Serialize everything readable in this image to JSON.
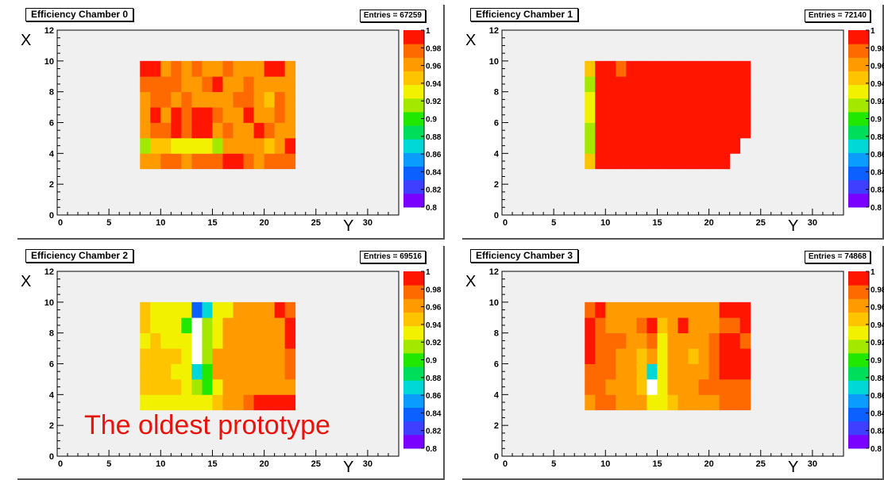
{
  "colors": {
    "frame_bg": "#f0f0f0",
    "annotation": "#e8140c"
  },
  "annotation": "The oldest prototype",
  "chart_data": [
    {
      "type": "heatmap",
      "title": "Efficiency Chamber 0",
      "entries": "Entries = 67259",
      "xlabel": "Y",
      "ylabel": "X",
      "xlim": [
        0,
        33
      ],
      "ylim": [
        0,
        12
      ],
      "x_ticks": [
        "0",
        "5",
        "10",
        "15",
        "20",
        "25",
        "30"
      ],
      "y_ticks": [
        "0",
        "2",
        "4",
        "6",
        "8",
        "10",
        "12"
      ],
      "zlim": [
        0.8,
        1.0
      ],
      "z_ticks": [
        "1",
        "0.98",
        "0.96",
        "0.94",
        "0.92",
        "0.9",
        "0.88",
        "0.86",
        "0.84",
        "0.82",
        "0.8"
      ],
      "cell_x_start": 8,
      "cell_y_start": 3,
      "cells": [
        [
          0.965,
          0.965,
          0.975,
          0.975,
          0.965,
          0.975,
          0.975,
          0.975,
          0.985,
          0.985,
          0.975,
          0.965,
          0.975,
          0.975,
          0.975
        ],
        [
          0.91,
          0.94,
          0.94,
          0.935,
          0.925,
          0.925,
          0.925,
          0.91,
          0.965,
          0.965,
          0.955,
          0.965,
          0.945,
          0.955,
          0.985
        ],
        [
          0.965,
          0.975,
          0.975,
          0.985,
          0.975,
          0.985,
          0.985,
          0.965,
          0.975,
          0.965,
          0.965,
          0.985,
          0.975,
          0.965,
          0.965
        ],
        [
          0.965,
          0.985,
          0.965,
          0.99,
          0.975,
          0.985,
          0.985,
          0.975,
          0.965,
          0.965,
          0.985,
          0.965,
          0.965,
          0.975,
          0.955
        ],
        [
          0.965,
          0.975,
          0.975,
          0.965,
          0.975,
          0.965,
          0.965,
          0.965,
          0.965,
          0.975,
          0.975,
          0.965,
          0.945,
          0.975,
          0.965
        ],
        [
          0.975,
          0.975,
          0.975,
          0.975,
          0.965,
          0.965,
          0.975,
          0.985,
          0.965,
          0.965,
          0.975,
          0.965,
          0.955,
          0.965,
          0.955
        ],
        [
          0.985,
          0.985,
          0.965,
          0.975,
          0.965,
          0.975,
          0.965,
          0.965,
          0.975,
          0.965,
          0.965,
          0.965,
          0.985,
          0.985,
          0.965
        ]
      ]
    },
    {
      "type": "heatmap",
      "title": "Efficiency Chamber 1",
      "entries": "Entries = 72140",
      "xlabel": "Y",
      "ylabel": "X",
      "xlim": [
        0,
        33
      ],
      "ylim": [
        0,
        12
      ],
      "x_ticks": [
        "0",
        "5",
        "10",
        "15",
        "20",
        "25",
        "30"
      ],
      "y_ticks": [
        "0",
        "2",
        "4",
        "6",
        "8",
        "10",
        "12"
      ],
      "zlim": [
        0.8,
        1.0
      ],
      "z_ticks": [
        "1",
        "0.98",
        "0.96",
        "0.94",
        "0.92",
        "0.9",
        "0.88",
        "0.86",
        "0.84",
        "0.82",
        "0.8"
      ],
      "cell_x_start": 8,
      "cell_y_start": 3,
      "cells": [
        [
          0.94,
          0.99,
          0.99,
          0.99,
          0.99,
          0.99,
          0.99,
          0.99,
          0.99,
          0.99,
          0.99,
          0.99,
          0.99,
          0.99,
          null,
          null
        ],
        [
          0.92,
          0.99,
          0.99,
          0.99,
          0.99,
          0.99,
          0.99,
          0.99,
          0.99,
          0.99,
          0.99,
          0.99,
          0.99,
          0.99,
          0.99,
          null
        ],
        [
          0.92,
          0.99,
          0.99,
          0.99,
          0.99,
          0.99,
          0.99,
          0.99,
          0.99,
          0.99,
          0.99,
          0.99,
          0.99,
          0.99,
          0.99,
          0.99
        ],
        [
          0.93,
          0.99,
          0.99,
          0.99,
          0.99,
          0.99,
          0.99,
          0.99,
          0.99,
          0.99,
          0.99,
          0.99,
          0.99,
          0.99,
          0.99,
          0.99
        ],
        [
          0.93,
          0.99,
          0.99,
          0.99,
          0.99,
          0.99,
          0.99,
          0.99,
          0.99,
          0.99,
          0.99,
          0.99,
          0.99,
          0.99,
          0.99,
          0.99
        ],
        [
          0.92,
          0.99,
          0.99,
          0.99,
          0.99,
          0.99,
          0.99,
          0.99,
          0.99,
          0.99,
          0.99,
          0.99,
          0.99,
          0.99,
          0.99,
          0.99
        ],
        [
          0.94,
          0.99,
          0.99,
          0.98,
          0.99,
          0.99,
          0.99,
          0.99,
          0.99,
          0.99,
          0.99,
          0.99,
          0.99,
          0.99,
          0.99,
          0.99
        ]
      ]
    },
    {
      "type": "heatmap",
      "title": "Efficiency Chamber  2",
      "entries": "Entries = 69516",
      "xlabel": "Y",
      "ylabel": "X",
      "xlim": [
        0,
        33
      ],
      "ylim": [
        0,
        12
      ],
      "x_ticks": [
        "0",
        "5",
        "10",
        "15",
        "20",
        "25",
        "30"
      ],
      "y_ticks": [
        "0",
        "2",
        "4",
        "6",
        "8",
        "10",
        "12"
      ],
      "zlim": [
        0.8,
        1.0
      ],
      "z_ticks": [
        "1",
        "0.98",
        "0.96",
        "0.94",
        "0.92",
        "0.9",
        "0.88",
        "0.86",
        "0.84",
        "0.82",
        "0.8"
      ],
      "cell_x_start": 8,
      "cell_y_start": 3,
      "cells": [
        [
          0.925,
          0.925,
          0.935,
          0.935,
          0.925,
          0.935,
          0.935,
          0.94,
          0.955,
          0.965,
          0.975,
          0.985,
          0.985,
          0.985,
          0.985
        ],
        [
          0.945,
          0.945,
          0.945,
          0.945,
          0.935,
          0.92,
          0.905,
          0.935,
          0.955,
          0.955,
          0.955,
          0.955,
          0.955,
          0.965,
          0.965
        ],
        [
          0.945,
          0.945,
          0.945,
          0.935,
          0.935,
          0.87,
          0.905,
          0.955,
          0.955,
          0.955,
          0.965,
          0.955,
          0.955,
          0.955,
          0.975
        ],
        [
          0.945,
          0.945,
          0.945,
          0.945,
          0.935,
          1.0,
          0.92,
          0.955,
          0.955,
          0.955,
          0.955,
          0.965,
          0.965,
          0.955,
          0.975
        ],
        [
          0.935,
          0.945,
          0.935,
          0.935,
          0.925,
          1.0,
          0.92,
          0.935,
          0.955,
          0.955,
          0.955,
          0.955,
          0.955,
          0.955,
          0.985
        ],
        [
          0.945,
          0.935,
          0.935,
          0.925,
          0.905,
          1.0,
          0.92,
          0.935,
          0.955,
          0.965,
          0.955,
          0.955,
          0.955,
          0.965,
          0.985
        ],
        [
          0.945,
          0.935,
          0.925,
          0.925,
          0.925,
          0.845,
          0.875,
          0.925,
          0.935,
          0.955,
          0.955,
          0.965,
          0.965,
          0.985,
          0.975
        ]
      ]
    },
    {
      "type": "heatmap",
      "title": "Efficiency Chamber  3",
      "entries": "Entries = 74868",
      "xlabel": "Y",
      "ylabel": "X",
      "xlim": [
        0,
        33
      ],
      "ylim": [
        0,
        12
      ],
      "x_ticks": [
        "0",
        "5",
        "10",
        "15",
        "20",
        "25",
        "30"
      ],
      "y_ticks": [
        "0",
        "2",
        "4",
        "6",
        "8",
        "10",
        "12"
      ],
      "zlim": [
        0.8,
        1.0
      ],
      "z_ticks": [
        "1",
        "0.98",
        "0.96",
        "0.94",
        "0.92",
        "0.9",
        "0.88",
        "0.86",
        "0.84",
        "0.82",
        "0.8"
      ],
      "cell_x_start": 8,
      "cell_y_start": 3,
      "cells": [
        [
          0.965,
          0.975,
          0.975,
          0.965,
          0.955,
          0.955,
          0.935,
          0.925,
          0.945,
          0.955,
          0.965,
          0.965,
          0.965,
          0.975,
          0.975,
          0.975
        ],
        [
          0.975,
          0.975,
          0.965,
          0.965,
          0.965,
          0.945,
          1.0,
          0.935,
          0.955,
          0.965,
          0.965,
          0.975,
          0.975,
          0.975,
          0.975,
          0.975
        ],
        [
          0.975,
          0.975,
          0.975,
          0.965,
          0.965,
          0.945,
          0.87,
          0.935,
          0.955,
          0.965,
          0.965,
          0.955,
          0.975,
          0.985,
          0.985,
          0.985
        ],
        [
          0.985,
          0.975,
          0.975,
          0.965,
          0.965,
          0.945,
          0.955,
          0.935,
          0.955,
          0.965,
          0.945,
          0.965,
          0.975,
          0.985,
          0.985,
          0.985
        ],
        [
          0.985,
          0.975,
          0.975,
          0.975,
          0.965,
          0.965,
          0.975,
          0.935,
          0.955,
          0.965,
          0.965,
          0.965,
          0.975,
          0.985,
          0.985,
          0.975
        ],
        [
          0.985,
          0.975,
          0.965,
          0.965,
          0.965,
          0.975,
          0.99,
          0.945,
          0.965,
          0.985,
          0.965,
          0.965,
          0.965,
          0.975,
          0.975,
          0.985
        ],
        [
          0.975,
          0.985,
          0.965,
          0.965,
          0.965,
          0.965,
          0.965,
          0.955,
          0.965,
          0.965,
          0.965,
          0.965,
          0.965,
          0.985,
          0.985,
          0.985
        ]
      ]
    }
  ]
}
